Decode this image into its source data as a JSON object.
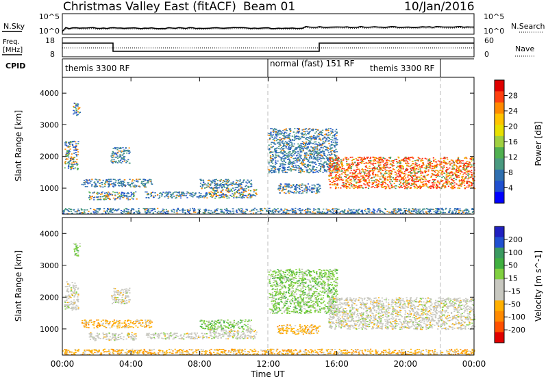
{
  "header": {
    "title": "Christmas Valley East (fitACF)",
    "beam": "Beam 01",
    "date": "10/Jan/2016"
  },
  "noise_panel": {
    "left_label": "N.Sky",
    "right_label": "N.Search",
    "left_ticks": [
      "10^5",
      "10^0"
    ],
    "right_ticks": [
      "10^5",
      "10^0"
    ]
  },
  "freq_panel": {
    "left_label_1": "Freq.",
    "left_label_2": "[MHz]",
    "left_ticks": [
      "18",
      "8"
    ],
    "right_label": "Nave",
    "right_ticks": [
      "60",
      "0"
    ]
  },
  "cpid": {
    "label": "CPID",
    "segments": [
      "themis 3300 RF",
      "normal (fast) 151 RF",
      "themis 3300 RF"
    ]
  },
  "axes": {
    "ylabel": "Slant Range [km]",
    "yticks": [
      1000,
      2000,
      3000,
      4000
    ],
    "ylim": [
      180,
      4500
    ],
    "xlabel": "Time UT",
    "xticks": [
      "00:00",
      "04:00",
      "08:00",
      "12:00",
      "16:00",
      "20:00",
      "00:00"
    ],
    "xlim_hours": [
      0,
      24
    ]
  },
  "chart_data": [
    {
      "type": "heatmap",
      "title": "",
      "quantity": "Power",
      "colorbar_label": "Power [dB]",
      "colorbar_ticks": [
        "28",
        "24",
        "20",
        "16",
        "12",
        "8",
        "4"
      ],
      "colorbar_colors": [
        "#e00000",
        "#ff4010",
        "#ff8a00",
        "#ffc400",
        "#e8e000",
        "#a0d040",
        "#50b050",
        "#4a9a80",
        "#3070b0",
        "#2050d0",
        "#0000ff"
      ],
      "xlabel": "Time UT",
      "ylabel": "Slant Range [km]",
      "xlim_hours": [
        0,
        24
      ],
      "ylim_km": [
        180,
        4500
      ],
      "echo_regions": [
        {
          "t0": 0.0,
          "t1": 24.0,
          "r0": 200,
          "r1": 380,
          "level": "low"
        },
        {
          "t0": 0.1,
          "t1": 0.9,
          "r0": 1600,
          "r1": 2500,
          "level": "mid"
        },
        {
          "t0": 0.6,
          "t1": 1.0,
          "r0": 3300,
          "r1": 3700,
          "level": "mid"
        },
        {
          "t0": 1.1,
          "t1": 5.2,
          "r0": 1050,
          "r1": 1300,
          "level": "low"
        },
        {
          "t0": 1.5,
          "t1": 4.3,
          "r0": 650,
          "r1": 900,
          "level": "mid"
        },
        {
          "t0": 2.8,
          "t1": 3.9,
          "r0": 1800,
          "r1": 2300,
          "level": "low"
        },
        {
          "t0": 4.8,
          "t1": 8.4,
          "r0": 700,
          "r1": 900,
          "level": "low"
        },
        {
          "t0": 8.0,
          "t1": 11.0,
          "r0": 1000,
          "r1": 1300,
          "level": "low"
        },
        {
          "t0": 8.5,
          "t1": 11.3,
          "r0": 700,
          "r1": 1000,
          "level": "mid"
        },
        {
          "t0": 12.0,
          "t1": 16.0,
          "r0": 1500,
          "r1": 2900,
          "level": "low"
        },
        {
          "t0": 12.5,
          "t1": 15.0,
          "r0": 850,
          "r1": 1150,
          "level": "low"
        },
        {
          "t0": 15.5,
          "t1": 24.0,
          "r0": 1000,
          "r1": 2000,
          "level": "high"
        }
      ]
    },
    {
      "type": "heatmap",
      "title": "",
      "quantity": "Velocity",
      "colorbar_label": "Velocity [m s^-1]",
      "colorbar_ticks": [
        "200",
        "100",
        "50",
        "15",
        "-15",
        "-50",
        "-100",
        "-200"
      ],
      "colorbar_colors": [
        "#2020c0",
        "#2050d0",
        "#3a9a60",
        "#40b040",
        "#80d040",
        "#c8c8c0",
        "#c8c8c0",
        "#ffb000",
        "#ff8a00",
        "#ff5000",
        "#e00000"
      ],
      "xlabel": "Time UT",
      "ylabel": "Slant Range [km]",
      "xlim_hours": [
        0,
        24
      ],
      "ylim_km": [
        180,
        4500
      ],
      "echo_regions": [
        {
          "t0": 0.0,
          "t1": 24.0,
          "r0": 200,
          "r1": 380,
          "level": "negative"
        },
        {
          "t0": 0.1,
          "t1": 0.9,
          "r0": 1600,
          "r1": 2500,
          "level": "near-zero"
        },
        {
          "t0": 0.6,
          "t1": 1.0,
          "r0": 3300,
          "r1": 3700,
          "level": "positive"
        },
        {
          "t0": 1.1,
          "t1": 5.2,
          "r0": 1050,
          "r1": 1300,
          "level": "negative"
        },
        {
          "t0": 1.5,
          "t1": 4.3,
          "r0": 650,
          "r1": 900,
          "level": "near-zero"
        },
        {
          "t0": 2.8,
          "t1": 3.9,
          "r0": 1800,
          "r1": 2300,
          "level": "near-zero"
        },
        {
          "t0": 4.8,
          "t1": 8.4,
          "r0": 700,
          "r1": 900,
          "level": "near-zero"
        },
        {
          "t0": 8.0,
          "t1": 11.0,
          "r0": 1000,
          "r1": 1300,
          "level": "positive"
        },
        {
          "t0": 8.5,
          "t1": 11.3,
          "r0": 700,
          "r1": 1000,
          "level": "near-zero"
        },
        {
          "t0": 12.0,
          "t1": 16.0,
          "r0": 1500,
          "r1": 2900,
          "level": "positive"
        },
        {
          "t0": 12.5,
          "t1": 15.0,
          "r0": 850,
          "r1": 1150,
          "level": "negative"
        },
        {
          "t0": 15.5,
          "t1": 24.0,
          "r0": 1000,
          "r1": 2000,
          "level": "near-zero"
        }
      ]
    }
  ]
}
